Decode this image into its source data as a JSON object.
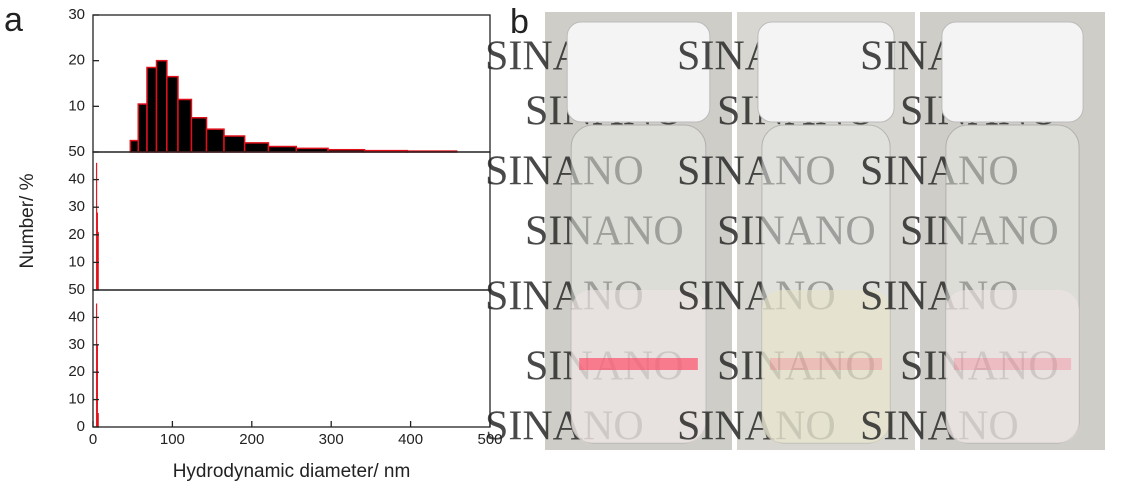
{
  "panel_labels": [
    "a",
    "b"
  ],
  "photo": {
    "text": "SINANO"
  },
  "chart_data": [
    {
      "type": "histogram",
      "bins": [
        47,
        57,
        68,
        80,
        93,
        107,
        124,
        143,
        165,
        191,
        221,
        256,
        296,
        342,
        396,
        458
      ],
      "values": [
        2.5,
        10.5,
        18.5,
        20,
        16.5,
        11.5,
        7.5,
        5,
        3.5,
        2,
        1.2,
        0.8,
        0.5,
        0.3,
        0.2
      ],
      "color": "#000000",
      "edgecolor": "#e0101a",
      "xlim": [
        0,
        500
      ],
      "ylim": [
        0,
        30
      ],
      "yticks": [
        10,
        20,
        30
      ]
    },
    {
      "type": "histogram",
      "bins": [
        4,
        5,
        6,
        7
      ],
      "values": [
        46,
        28,
        21
      ],
      "color": "#e0101a",
      "edgecolor": "#e0101a",
      "xlim": [
        0,
        500
      ],
      "ylim": [
        0,
        50
      ],
      "yticks": [
        10,
        20,
        30,
        40,
        50
      ],
      "ylabel": "Number/ %"
    },
    {
      "type": "histogram",
      "bins": [
        4,
        5,
        6,
        7
      ],
      "values": [
        45,
        30,
        5
      ],
      "color": "#e0101a",
      "edgecolor": "#e0101a",
      "xlim": [
        0,
        500
      ],
      "ylim": [
        0,
        50
      ],
      "yticks": [
        0,
        10,
        20,
        30,
        40,
        50
      ],
      "xticks": [
        0,
        100,
        200,
        300,
        400,
        500
      ],
      "xlabel": "Hydrodynamic diameter/ nm"
    }
  ]
}
